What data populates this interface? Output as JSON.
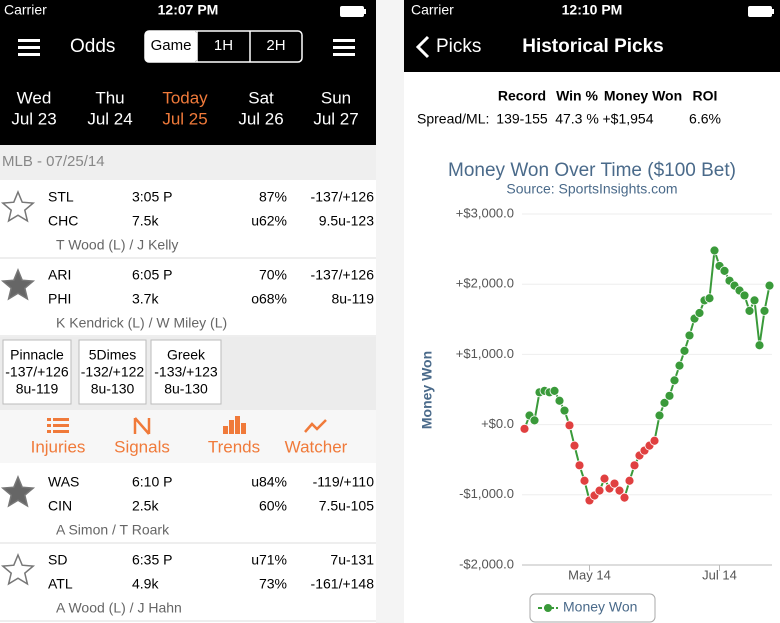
{
  "left_screen": {
    "status": {
      "carrier": "Carrier",
      "time": "12:07 PM"
    },
    "nav": {
      "title": "Odds",
      "segments": [
        "Game",
        "1H",
        "2H"
      ],
      "selected_segment": 0
    },
    "days": [
      {
        "day": "Wed",
        "date": "Jul 23"
      },
      {
        "day": "Thu",
        "date": "Jul 24"
      },
      {
        "day": "Today",
        "date": "Jul 25"
      },
      {
        "day": "Sat",
        "date": "Jul 26"
      },
      {
        "day": "Sun",
        "date": "Jul 27"
      }
    ],
    "today_index": 2,
    "section": "MLB - 07/25/14",
    "games": [
      {
        "teams": [
          "STL",
          "CHC"
        ],
        "times": [
          "3:05 P",
          "7.5k"
        ],
        "percents": [
          "87%",
          "u62%"
        ],
        "odds": [
          "-137/+126",
          "9.5u-123"
        ],
        "pitchers": "T Wood (L) / J Kelly",
        "starred": false
      },
      {
        "teams": [
          "ARI",
          "PHI"
        ],
        "times": [
          "6:05 P",
          "3.7k"
        ],
        "percents": [
          "70%",
          "o68%"
        ],
        "odds": [
          "-137/+126",
          "8u-119"
        ],
        "pitchers": "K Kendrick (L) / W Miley (L)",
        "starred": true
      },
      {
        "teams": [
          "WAS",
          "CIN"
        ],
        "times": [
          "6:10 P",
          "2.5k"
        ],
        "percents": [
          "u84%",
          "60%"
        ],
        "odds": [
          "-119/+110",
          "7.5u-105"
        ],
        "pitchers": "A Simon / T Roark",
        "starred": true
      },
      {
        "teams": [
          "SD",
          "ATL"
        ],
        "times": [
          "6:35 P",
          "4.9k"
        ],
        "percents": [
          "u71%",
          "73%"
        ],
        "odds": [
          "7u-131",
          "-161/+148"
        ],
        "pitchers": "A Wood (L) / J Hahn",
        "starred": false
      }
    ],
    "books": [
      {
        "name": "Pinnacle",
        "spread": "-137/+126",
        "total": "8u-119"
      },
      {
        "name": "5Dimes",
        "spread": "-132/+122",
        "total": "8u-130"
      },
      {
        "name": "Greek",
        "spread": "-133/+123",
        "total": "8u-130"
      }
    ],
    "tabs": [
      "Injuries",
      "Signals",
      "Trends",
      "Watcher"
    ]
  },
  "right_screen": {
    "status": {
      "carrier": "Carrier",
      "time": "12:10 PM"
    },
    "nav": {
      "back": "Picks",
      "title": "Historical Picks"
    },
    "stats": {
      "headers": [
        "Record",
        "Win %",
        "Money Won",
        "ROI"
      ],
      "row_label": "Spread/ML:",
      "values": [
        "139-155",
        "47.3 %",
        "+$1,954",
        "6.6%"
      ]
    }
  },
  "chart_data": {
    "type": "line",
    "title": "Money Won Over Time ($100 Bet)",
    "subtitle": "Source: SportsInsights.com",
    "y_label": "Money Won",
    "categories": [
      null,
      null,
      null,
      null,
      null,
      null,
      null,
      null,
      null,
      null,
      null,
      null,
      null,
      "May 14",
      null,
      null,
      null,
      null,
      null,
      null,
      null,
      null,
      null,
      null,
      null,
      null,
      null,
      null,
      null,
      null,
      null,
      null,
      null,
      null,
      null,
      null,
      null,
      null,
      null,
      "Jul 14",
      null,
      null,
      null,
      null,
      null,
      null,
      null,
      null,
      null,
      null
    ],
    "series": [
      {
        "name": "Money Won",
        "color": "#3a9a3a",
        "negative_color": "#e04040",
        "values": [
          -60,
          130,
          60,
          460,
          480,
          460,
          480,
          340,
          200,
          -10,
          -300,
          -580,
          -800,
          -1080,
          -1010,
          -940,
          -770,
          -910,
          -840,
          -940,
          -1040,
          -800,
          -580,
          -440,
          -370,
          -300,
          -230,
          130,
          310,
          410,
          630,
          840,
          1050,
          1270,
          1510,
          1590,
          1770,
          1800,
          2480,
          2260,
          2190,
          2050,
          1980,
          1910,
          1840,
          1620,
          1770,
          1130,
          1620,
          1980
        ]
      }
    ],
    "ylim": [
      -2000,
      3000
    ],
    "yticks": [
      {
        "value": -2000,
        "label": "-$2,000.0"
      },
      {
        "value": -1000,
        "label": "-$1,000.0"
      },
      {
        "value": 0,
        "label": "+$0.0"
      },
      {
        "value": 1000,
        "label": "+$1,000.0"
      },
      {
        "value": 2000,
        "label": "+$2,000.0"
      },
      {
        "value": 3000,
        "label": "+$3,000.0"
      }
    ],
    "grid": true,
    "legend": "bottom"
  }
}
